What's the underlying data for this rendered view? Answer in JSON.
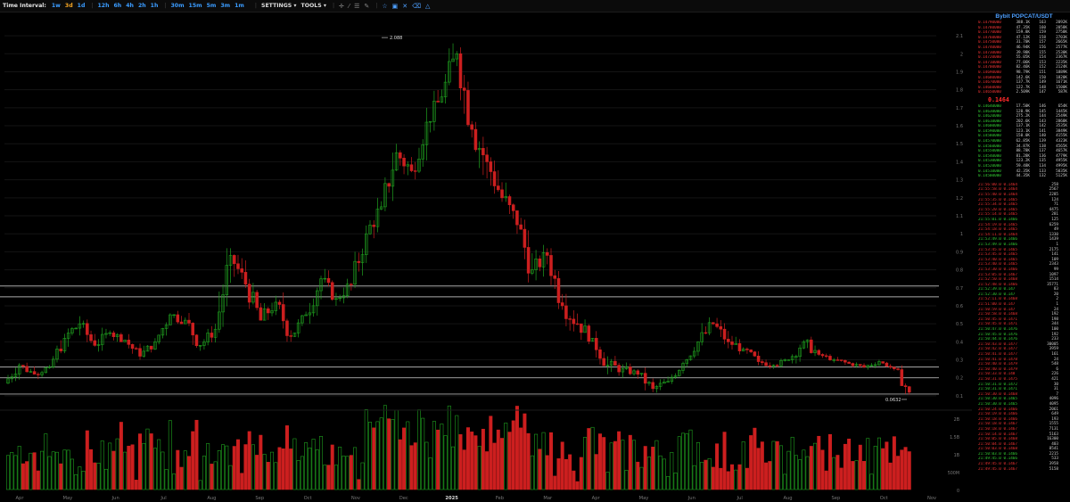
{
  "toolbar": {
    "time_interval_label": "Time Interval:",
    "intervals": [
      "1w",
      "3d",
      "1d",
      "12h",
      "6h",
      "4h",
      "2h",
      "1h",
      "30m",
      "15m",
      "5m",
      "3m",
      "1m"
    ],
    "active_interval": "3d",
    "settings_label": "SETTINGS ▾",
    "tools_label": "TOOLS ▾"
  },
  "chart_data": {
    "type": "candlestick",
    "symbol": "POPCATUSDT",
    "x_labels": [
      "Apr",
      "May",
      "Jun",
      "Jul",
      "Aug",
      "Sep",
      "Oct",
      "Nov",
      "Dec",
      "2025",
      "Feb",
      "Mar",
      "Apr",
      "May",
      "Jun",
      "Jul",
      "Aug",
      "Sep",
      "Oct",
      "Nov"
    ],
    "y_ticks": [
      "2.1",
      "2",
      "1.9",
      "1.8",
      "1.7",
      "1.6",
      "1.5",
      "1.4",
      "1.3",
      "1.2",
      "1.1",
      "1",
      "0.9",
      "0.8",
      "0.7",
      "0.6",
      "0.5",
      "0.4",
      "0.3",
      "0.2",
      "0.1"
    ],
    "volume_ticks": [
      "2B",
      "1.5B",
      "1B",
      "500M",
      "0"
    ],
    "high_label": "2.088",
    "low_label": "0.0632",
    "horizontal_levels": [
      0.71,
      0.65,
      0.26,
      0.2,
      0.11
    ],
    "colors": {
      "up": "#1fa01f",
      "down": "#cc1f1f",
      "grid": "#141414",
      "level": "#aaaaaa"
    },
    "candles_ohlc_approx": [
      [
        0.17,
        0.3,
        0.14,
        0.27
      ],
      [
        0.27,
        0.34,
        0.22,
        0.22
      ],
      [
        0.22,
        0.28,
        0.18,
        0.26
      ],
      [
        0.26,
        0.45,
        0.24,
        0.42
      ],
      [
        0.42,
        0.6,
        0.35,
        0.5
      ],
      [
        0.5,
        0.55,
        0.35,
        0.38
      ],
      [
        0.38,
        0.5,
        0.34,
        0.45
      ],
      [
        0.45,
        0.52,
        0.4,
        0.41
      ],
      [
        0.41,
        0.45,
        0.3,
        0.32
      ],
      [
        0.32,
        0.42,
        0.28,
        0.4
      ],
      [
        0.4,
        0.58,
        0.38,
        0.55
      ],
      [
        0.55,
        0.68,
        0.5,
        0.52
      ],
      [
        0.52,
        0.6,
        0.35,
        0.38
      ],
      [
        0.38,
        0.5,
        0.33,
        0.47
      ],
      [
        0.47,
        0.92,
        0.45,
        0.88
      ],
      [
        0.88,
        1.0,
        0.7,
        0.72
      ],
      [
        0.72,
        0.82,
        0.5,
        0.52
      ],
      [
        0.52,
        0.7,
        0.46,
        0.62
      ],
      [
        0.62,
        0.7,
        0.4,
        0.43
      ],
      [
        0.43,
        0.58,
        0.4,
        0.55
      ],
      [
        0.55,
        0.8,
        0.5,
        0.75
      ],
      [
        0.75,
        0.82,
        0.6,
        0.64
      ],
      [
        0.64,
        0.75,
        0.55,
        0.72
      ],
      [
        0.72,
        1.05,
        0.7,
        1.0
      ],
      [
        1.0,
        1.2,
        0.92,
        1.15
      ],
      [
        1.15,
        1.5,
        1.1,
        1.45
      ],
      [
        1.45,
        1.6,
        1.25,
        1.35
      ],
      [
        1.35,
        1.7,
        1.3,
        1.62
      ],
      [
        1.62,
        1.82,
        1.55,
        1.76
      ],
      [
        1.76,
        2.09,
        1.6,
        2.0
      ],
      [
        2.0,
        2.05,
        1.5,
        1.58
      ],
      [
        1.58,
        1.8,
        1.3,
        1.4
      ],
      [
        1.4,
        1.55,
        1.15,
        1.2
      ],
      [
        1.2,
        1.45,
        1.0,
        1.05
      ],
      [
        1.05,
        1.2,
        0.72,
        0.8
      ],
      [
        0.8,
        0.95,
        0.7,
        0.88
      ],
      [
        0.88,
        0.92,
        0.55,
        0.6
      ],
      [
        0.6,
        0.72,
        0.45,
        0.5
      ],
      [
        0.5,
        0.6,
        0.38,
        0.42
      ],
      [
        0.42,
        0.5,
        0.22,
        0.27
      ],
      [
        0.27,
        0.35,
        0.18,
        0.25
      ],
      [
        0.25,
        0.3,
        0.19,
        0.22
      ],
      [
        0.22,
        0.28,
        0.12,
        0.14
      ],
      [
        0.14,
        0.22,
        0.11,
        0.18
      ],
      [
        0.18,
        0.3,
        0.15,
        0.28
      ],
      [
        0.28,
        0.42,
        0.26,
        0.4
      ],
      [
        0.4,
        0.6,
        0.38,
        0.5
      ],
      [
        0.5,
        0.55,
        0.35,
        0.4
      ],
      [
        0.4,
        0.48,
        0.33,
        0.36
      ],
      [
        0.36,
        0.4,
        0.27,
        0.29
      ],
      [
        0.29,
        0.34,
        0.25,
        0.27
      ],
      [
        0.27,
        0.32,
        0.24,
        0.3
      ],
      [
        0.3,
        0.46,
        0.28,
        0.4
      ],
      [
        0.4,
        0.48,
        0.31,
        0.33
      ],
      [
        0.33,
        0.34,
        0.28,
        0.3
      ],
      [
        0.3,
        0.32,
        0.25,
        0.28
      ],
      [
        0.28,
        0.3,
        0.24,
        0.26
      ],
      [
        0.26,
        0.3,
        0.23,
        0.29
      ],
      [
        0.29,
        0.29,
        0.24,
        0.25
      ],
      [
        0.25,
        0.27,
        0.1,
        0.12
      ]
    ]
  },
  "orderbook": {
    "title": "Bybit POPCAT/USDT",
    "asks": [
      [
        "0.14790000",
        "388.1K",
        "163",
        "2092K"
      ],
      [
        "0.14780000",
        "47.35K",
        "160",
        "2058K"
      ],
      [
        "0.14770000",
        "159.8K",
        "159",
        "2758K"
      ],
      [
        "0.14760000",
        "47.12K",
        "158",
        "2703K"
      ],
      [
        "0.14750000",
        "31.70K",
        "157",
        "2665K"
      ],
      [
        "0.14740000",
        "46.94K",
        "156",
        "2577K"
      ],
      [
        "0.14730000",
        "39.98K",
        "155",
        "2530K"
      ],
      [
        "0.14720000",
        "55.05K",
        "154",
        "2367K"
      ],
      [
        "0.14710000",
        "77.06K",
        "153",
        "2235K"
      ],
      [
        "0.14700000",
        "82.46K",
        "152",
        "2124K"
      ],
      [
        "0.14690000",
        "98.79K",
        "151",
        "1889K"
      ],
      [
        "0.14680000",
        "142.6K",
        "150",
        "1820K"
      ],
      [
        "0.14670000",
        "137.7K",
        "149",
        "1671K"
      ],
      [
        "0.14660000",
        "122.7K",
        "148",
        "1500K"
      ],
      [
        "0.14650000",
        "2.509K",
        "147",
        "587K"
      ]
    ],
    "mid_price": "0.1464",
    "bids": [
      [
        "0.14640000",
        "17.50K",
        "146",
        "654K"
      ],
      [
        "0.14630000",
        "120.9K",
        "145",
        "1445K"
      ],
      [
        "0.14620000",
        "275.2K",
        "144",
        "2549K"
      ],
      [
        "0.14610000",
        "202.6K",
        "143",
        "2868K"
      ],
      [
        "0.14600000",
        "137.1K",
        "142",
        "3535K"
      ],
      [
        "0.14590000",
        "123.1K",
        "141",
        "3849K"
      ],
      [
        "0.14580000",
        "150.0K",
        "140",
        "4155K"
      ],
      [
        "0.14570000",
        "62.85K",
        "139",
        "4323K"
      ],
      [
        "0.14560000",
        "34.87K",
        "138",
        "4565K"
      ],
      [
        "0.14550000",
        "88.78K",
        "137",
        "4657K"
      ],
      [
        "0.14540000",
        "81.28K",
        "136",
        "4779K"
      ],
      [
        "0.14530000",
        "123.2K",
        "135",
        "4955K"
      ],
      [
        "0.14520000",
        "59.48K",
        "134",
        "4995K"
      ],
      [
        "0.14510000",
        "42.35K",
        "133",
        "5035K"
      ],
      [
        "0.14500000",
        "44.35K",
        "132",
        "5125K"
      ]
    ],
    "trades": [
      [
        "21:56:00.0 0.1464",
        "258",
        "s"
      ],
      [
        "21:55:58.0 0.1464",
        "2567",
        "s"
      ],
      [
        "21:55:40.0 0.1464",
        "2285",
        "s"
      ],
      [
        "21:55:35.0 0.1465",
        "124",
        "s"
      ],
      [
        "21:55:34.0 0.1465",
        "71",
        "s"
      ],
      [
        "21:55:20.0 0.1465",
        "4475",
        "s"
      ],
      [
        "21:55:14.0 0.1465",
        "281",
        "s"
      ],
      [
        "21:55:01.0 0.1466",
        "125",
        "b"
      ],
      [
        "21:54:19.0 0.1465",
        "6259",
        "s"
      ],
      [
        "21:54:18.0 0.1465",
        "49",
        "s"
      ],
      [
        "21:54:11.0 0.1464",
        "1330",
        "s"
      ],
      [
        "21:53:49.0 0.1466",
        "1439",
        "b"
      ],
      [
        "21:53:49.0 0.1466",
        "1",
        "b"
      ],
      [
        "21:53:45.0 0.1465",
        "2175",
        "s"
      ],
      [
        "21:53:45.0 0.1465",
        "141",
        "s"
      ],
      [
        "21:53:40.0 0.1465",
        "109",
        "s"
      ],
      [
        "21:53:40.0 0.1465",
        "2343",
        "s"
      ],
      [
        "21:53:30.0 0.1466",
        "99",
        "s"
      ],
      [
        "21:53:05.0 0.1467",
        "1097",
        "s"
      ],
      [
        "21:52:50.0 0.1468",
        "1514",
        "s"
      ],
      [
        "21:52:48.0 0.1466",
        "35771",
        "s"
      ],
      [
        "21:52:39.0 0.147",
        "83",
        "b"
      ],
      [
        "21:52:30.0 0.147",
        "20",
        "b"
      ],
      [
        "21:52:11.0 0.1468",
        "2",
        "s"
      ],
      [
        "21:51:00.0 0.147",
        "1",
        "s"
      ],
      [
        "21:50:59.0 0.147",
        "24",
        "s"
      ],
      [
        "21:50:58.0 0.1468",
        "192",
        "s"
      ],
      [
        "21:50:45.0 0.1471",
        "198",
        "s"
      ],
      [
        "21:50:45.0 0.1471",
        "344",
        "s"
      ],
      [
        "21:50:47.0 0.1476",
        "100",
        "b"
      ],
      [
        "21:50:45.0 0.1476",
        "192",
        "b"
      ],
      [
        "21:50:44.0 0.1476",
        "233",
        "b"
      ],
      [
        "21:50:43.0 0.1477",
        "30005",
        "s"
      ],
      [
        "21:50:42.0 0.1477",
        "3959",
        "s"
      ],
      [
        "21:50:41.0 0.1477",
        "161",
        "s"
      ],
      [
        "21:50:41.0 0.1478",
        "24",
        "s"
      ],
      [
        "21:50:40.0 0.1479",
        "548",
        "s"
      ],
      [
        "21:50:40.0 0.1479",
        "6",
        "s"
      ],
      [
        "21:50:33.0 0.148",
        "226",
        "s"
      ],
      [
        "21:50:31.0 0.1475",
        "421",
        "s"
      ],
      [
        "21:50:31.0 0.1472",
        "30",
        "b"
      ],
      [
        "21:50:31.0 0.1471",
        "31",
        "b"
      ],
      [
        "21:50:30.0 0.1468",
        "7",
        "s"
      ],
      [
        "21:50:30.0 0.1465",
        "4096",
        "b"
      ],
      [
        "21:50:30.0 0.1465",
        "4095",
        "b"
      ],
      [
        "21:50:24.0 0.1466",
        "2061",
        "s"
      ],
      [
        "21:50:19.0 0.1466",
        "649",
        "s"
      ],
      [
        "21:50:18.0 0.1466",
        "193",
        "s"
      ],
      [
        "21:50:18.0 0.1467",
        "1555",
        "s"
      ],
      [
        "21:50:18.0 0.1467",
        "7131",
        "s"
      ],
      [
        "21:50:14.0 0.1467",
        "5163",
        "s"
      ],
      [
        "21:50:05.0 0.1468",
        "16300",
        "s"
      ],
      [
        "21:50:04.0 0.1467",
        "403",
        "s"
      ],
      [
        "21:50:03.0 0.1468",
        "8541",
        "s"
      ],
      [
        "21:50:03.0 0.1466",
        "2215",
        "b"
      ],
      [
        "21:49:45.0 0.1466",
        "533",
        "b"
      ],
      [
        "21:49:45.0 0.1467",
        "3958",
        "s"
      ],
      [
        "21:49:45.0 0.1467",
        "5158",
        "s"
      ]
    ]
  }
}
